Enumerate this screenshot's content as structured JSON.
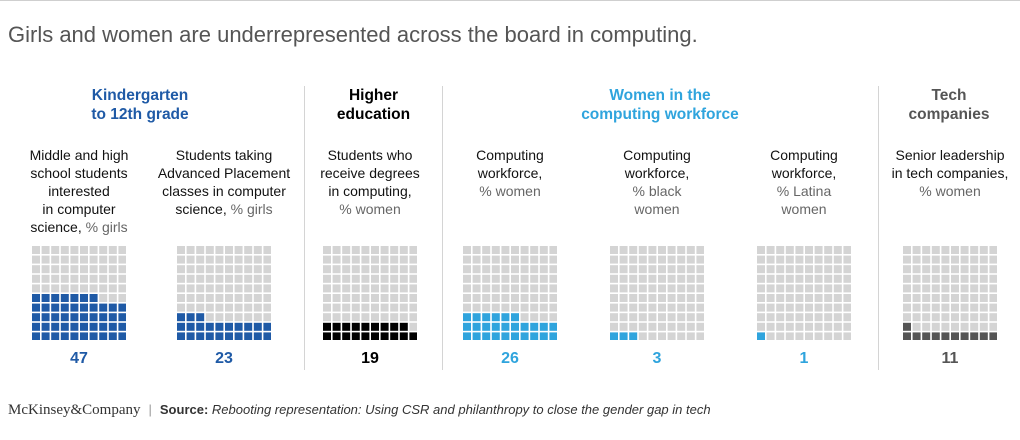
{
  "title": "Girls and women are underrepresented across the board in computing.",
  "colors": {
    "k12": "#1f5aa6",
    "higher": "#000000",
    "workforce": "#2fa4dd",
    "tech": "#555555",
    "empty": "#d4d4d4"
  },
  "groups": [
    {
      "label": "Kindergarten\nto 12th grade",
      "color": "#1f5aa6"
    },
    {
      "label": "Higher\neducation",
      "color": "#000000"
    },
    {
      "label": "Women in the\ncomputing workforce",
      "color": "#2fa4dd"
    },
    {
      "label": "Tech\ncompanies",
      "color": "#555555"
    }
  ],
  "chart_data": {
    "type": "waffle",
    "grid": {
      "rows": 10,
      "cols": 10,
      "total": 100
    },
    "series": [
      {
        "main": "Middle and high\nschool students\ninterested\nin computer\nscience,",
        "unit": " % girls",
        "value": 47,
        "color": "#1f5aa6",
        "group": "Kindergarten to 12th grade"
      },
      {
        "main": "Students taking\nAdvanced Placement\nclasses in computer\nscience,",
        "unit": " % girls",
        "value": 23,
        "color": "#1f5aa6",
        "group": "Kindergarten to 12th grade"
      },
      {
        "main": "Students who\nreceive degrees\nin computing,",
        "unit": "\n% women",
        "value": 19,
        "color": "#000000",
        "group": "Higher education"
      },
      {
        "main": "Computing\nworkforce,",
        "unit": "\n% women",
        "value": 26,
        "color": "#2fa4dd",
        "group": "Women in the computing workforce"
      },
      {
        "main": "Computing\nworkforce,",
        "unit": "\n% black\nwomen",
        "value": 3,
        "color": "#2fa4dd",
        "group": "Women in the computing workforce"
      },
      {
        "main": "Computing\nworkforce,",
        "unit": "\n% Latina\nwomen",
        "value": 1,
        "color": "#2fa4dd",
        "group": "Women in the computing workforce"
      },
      {
        "main": "Senior leadership\nin tech companies,",
        "unit": "\n% women",
        "value": 11,
        "color": "#555555",
        "group": "Tech companies"
      }
    ]
  },
  "footer": {
    "logo": "McKinsey&Company",
    "separator": "|",
    "source_label": "Source:",
    "source_text": "Rebooting representation: Using CSR and philanthropy to close the gender gap in tech"
  }
}
